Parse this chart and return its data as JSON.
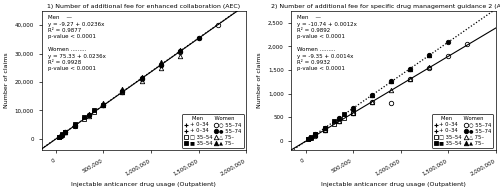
{
  "panel1": {
    "title": "1) Number of additional fee for enhanced collaboration (AEC)",
    "xlabel": "Injectable anticancer drug usage (Outpatient)",
    "ylabel": "Number of claims",
    "xlim": [
      -150000,
      2000000
    ],
    "ylim": [
      -4000,
      45000
    ],
    "xticks": [
      0,
      500000,
      1000000,
      1500000,
      2000000
    ],
    "xtick_labels": [
      "0",
      "500,000",
      "1,000,000",
      "1,500,000",
      "2,000,000"
    ],
    "yticks": [
      0,
      10000,
      20000,
      30000,
      40000
    ],
    "ytick_labels": [
      "0",
      "10,000",
      "20,000",
      "30,000",
      "40,000"
    ],
    "men_line": "Men    —",
    "men_eq": "y = -9.27 + 0.0236x",
    "men_r2": "R² = 0.9877",
    "men_pval": "p-value < 0.0001",
    "women_line": "Women .........",
    "women_eq": "y = 75.33 + 0.0236x",
    "women_r2": "R² = 0.9928",
    "women_pval": "p-value < 0.0001",
    "men_slope": 0.0236,
    "men_intercept": -9.27,
    "women_slope": 0.0236,
    "women_intercept": 75.33
  },
  "panel2": {
    "title": "2) Number of additional fee for specific drug management guidance 2 (ASD2)",
    "xlabel": "Injectable anticancer drug usage (Outpatient)",
    "ylabel": "Number of claims",
    "xlim": [
      -150000,
      2000000
    ],
    "ylim": [
      -200,
      2750
    ],
    "xticks": [
      0,
      500000,
      1000000,
      1500000,
      2000000
    ],
    "xtick_labels": [
      "0",
      "500,000",
      "1,000,000",
      "1,500,000",
      "2,000,000"
    ],
    "yticks": [
      0,
      500,
      1000,
      1500,
      2000,
      2500
    ],
    "ytick_labels": [
      "0",
      "500",
      "1,000",
      "1,500",
      "2,000",
      "2,500"
    ],
    "men_line": "Men    —",
    "men_eq": "y = -10.74 + 0.0012x",
    "men_r2": "R² = 0.9892",
    "men_pval": "p-value < 0.0001",
    "women_line": "Women .........",
    "women_eq": "y = -9.35 + 0.0014x",
    "women_r2": "R² = 0.9932",
    "women_pval": "p-value < 0.0001",
    "men_slope": 0.0012,
    "men_intercept": -10.74,
    "women_slope": 0.0014,
    "women_intercept": -9.35
  },
  "scatter": {
    "p1_men_circle_x": [
      50000,
      100000,
      200000,
      350000,
      500000,
      700000,
      900000,
      1100000,
      1300000,
      1500000,
      1700000
    ],
    "p1_men_circle_y": [
      1200,
      2400,
      4700,
      8300,
      11900,
      16600,
      21200,
      25900,
      30700,
      35400,
      40200
    ],
    "p1_men_tri_x": [
      100000,
      200000,
      350000,
      500000,
      700000,
      900000,
      1100000,
      1300000
    ],
    "p1_men_tri_y": [
      2400,
      4800,
      8200,
      11800,
      16500,
      20500,
      25000,
      29200
    ],
    "p1_men_sq_x": [
      30000,
      60000,
      100000,
      200000,
      300000,
      400000,
      500000
    ],
    "p1_men_sq_y": [
      700,
      1400,
      2400,
      4700,
      7100,
      9400,
      11800
    ],
    "p1_women_circle_x": [
      50000,
      100000,
      200000,
      350000,
      500000,
      700000,
      900000,
      1100000,
      1300000,
      1500000
    ],
    "p1_women_circle_y": [
      1200,
      2500,
      5000,
      8400,
      12000,
      16700,
      21400,
      26100,
      30900,
      35500
    ],
    "p1_women_tri_x": [
      100000,
      200000,
      350000,
      500000,
      700000,
      900000,
      1100000,
      1300000
    ],
    "p1_women_tri_y": [
      2600,
      5000,
      8700,
      12500,
      17400,
      21800,
      26900,
      31400
    ],
    "p1_women_sq_x": [
      30000,
      60000,
      100000,
      200000,
      300000,
      400000
    ],
    "p1_women_sq_y": [
      800,
      1600,
      2600,
      5100,
      7600,
      10200
    ],
    "p2_men_circle_x": [
      50000,
      100000,
      200000,
      350000,
      500000,
      700000,
      900000,
      1100000,
      1300000,
      1500000,
      1700000
    ],
    "p2_men_circle_y": [
      60,
      110,
      230,
      410,
      590,
      820,
      800,
      1310,
      1550,
      1790,
      2050
    ],
    "p2_men_tri_x": [
      100000,
      200000,
      350000,
      500000,
      700000,
      900000,
      1100000,
      1300000
    ],
    "p2_men_tri_y": [
      120,
      240,
      410,
      590,
      830,
      1080,
      1310,
      1560
    ],
    "p2_men_sq_x": [
      30000,
      60000,
      100000,
      200000,
      300000,
      400000,
      500000
    ],
    "p2_men_sq_y": [
      35,
      70,
      120,
      240,
      360,
      480,
      600
    ],
    "p2_women_circle_x": [
      50000,
      100000,
      200000,
      350000,
      500000,
      700000,
      900000,
      1100000,
      1300000,
      1500000
    ],
    "p2_women_circle_y": [
      70,
      140,
      280,
      490,
      700,
      980,
      1260,
      1530,
      1820,
      2100
    ],
    "p2_women_tri_x": [
      100000,
      200000,
      350000,
      500000,
      700000,
      900000,
      1100000,
      1300000
    ],
    "p2_women_tri_y": [
      140,
      280,
      490,
      700,
      980,
      1260,
      1530,
      1820
    ],
    "p2_women_sq_x": [
      30000,
      60000,
      100000,
      200000,
      300000,
      400000
    ],
    "p2_women_sq_y": [
      40,
      80,
      140,
      280,
      420,
      560
    ]
  },
  "legend_title_men": "Men",
  "legend_title_women": "Women",
  "legend_rows": [
    [
      "+",
      "0–34",
      "+",
      "0–34"
    ],
    [
      "sq_open",
      "35–54",
      "sq_fill",
      "35–54"
    ],
    [
      "ci_open",
      "55–74",
      "ci_fill",
      "55–74"
    ],
    [
      "tr_open",
      "75–",
      "tr_fill",
      "75–"
    ]
  ],
  "colors": {
    "line": "#000000",
    "bg": "#ffffff"
  }
}
